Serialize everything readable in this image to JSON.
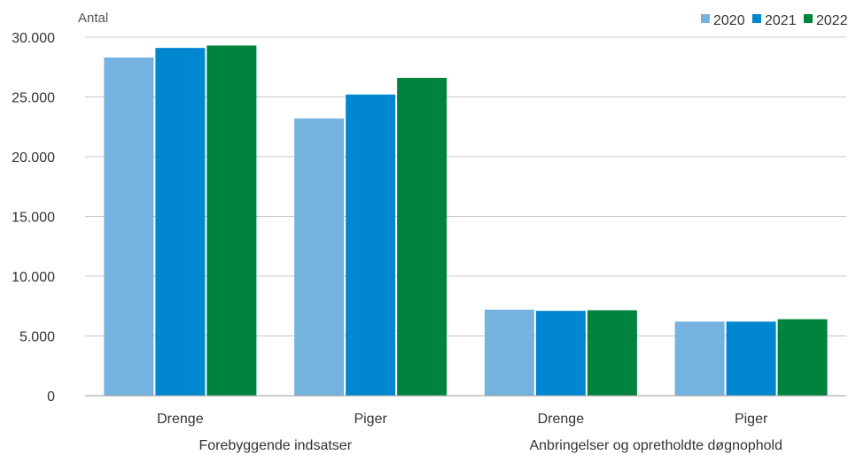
{
  "chart_data": {
    "type": "bar",
    "ylabel": "Antal",
    "ylim": [
      0,
      30000
    ],
    "yticks": [
      0,
      5000,
      10000,
      15000,
      20000,
      25000,
      30000
    ],
    "ytick_labels": [
      "0",
      "5.000",
      "10.000",
      "15.000",
      "20.000",
      "25.000",
      "30.000"
    ],
    "grid": true,
    "legend_position": "top-right",
    "categories": [
      "Drenge",
      "Piger",
      "Drenge",
      "Piger"
    ],
    "groups": [
      {
        "label": "Forebyggende indsatser",
        "categories": [
          0,
          1
        ]
      },
      {
        "label": "Anbringelser og opretholdte døgnophold",
        "categories": [
          2,
          3
        ]
      }
    ],
    "series": [
      {
        "name": "2020",
        "color": "#74b3e0",
        "values": [
          28300,
          23200,
          7200,
          6200
        ]
      },
      {
        "name": "2021",
        "color": "#0087d0",
        "values": [
          29100,
          25200,
          7100,
          6200
        ]
      },
      {
        "name": "2022",
        "color": "#00843d",
        "values": [
          29300,
          26600,
          7150,
          6400
        ]
      }
    ]
  }
}
